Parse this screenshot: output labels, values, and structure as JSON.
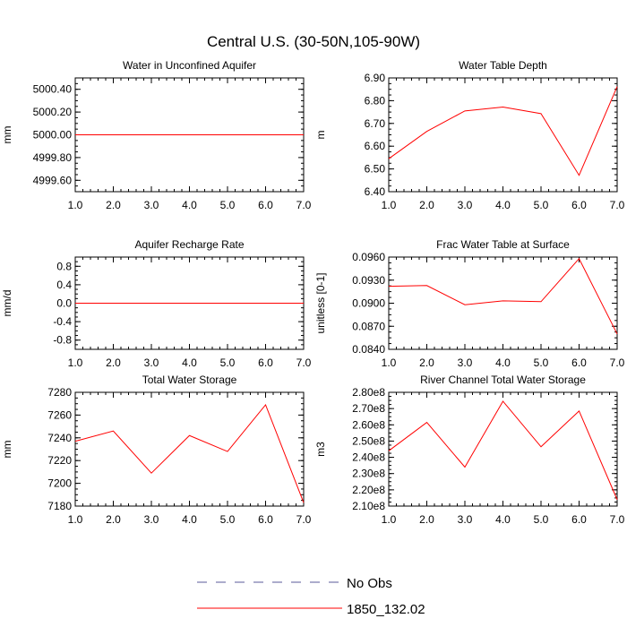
{
  "title": "Central U.S. (30-50N,105-90W)",
  "legend": {
    "placement": "bottom-center",
    "items": [
      {
        "label": "No Obs",
        "color": "#5a5a9a",
        "dash": true
      },
      {
        "label": "1850_132.02",
        "color": "#ff0000",
        "dash": false
      }
    ]
  },
  "chart_data": [
    {
      "type": "line",
      "title": "Water in Unconfined Aquifer",
      "ylabel": "mm",
      "x": [
        1,
        2,
        3,
        4,
        5,
        6,
        7
      ],
      "xlim": [
        1,
        7
      ],
      "xticks": [
        "1.0",
        "2.0",
        "3.0",
        "4.0",
        "5.0",
        "6.0",
        "7.0"
      ],
      "ylim": [
        4999.5,
        5000.5
      ],
      "yticks": [
        4999.6,
        4999.8,
        5000.0,
        5000.2,
        5000.4
      ],
      "ytick_labels": [
        "4999.60",
        "4999.80",
        "5000.00",
        "5000.20",
        "5000.40"
      ],
      "series": [
        {
          "name": "1850_132.02",
          "color": "#ff0000",
          "values": [
            5000,
            5000,
            5000,
            5000,
            5000,
            5000,
            5000
          ]
        }
      ]
    },
    {
      "type": "line",
      "title": "Water Table Depth",
      "ylabel": "m",
      "x": [
        1,
        2,
        3,
        4,
        5,
        6,
        7
      ],
      "xlim": [
        1,
        7
      ],
      "xticks": [
        "1.0",
        "2.0",
        "3.0",
        "4.0",
        "5.0",
        "6.0",
        "7.0"
      ],
      "ylim": [
        6.4,
        6.9
      ],
      "yticks": [
        6.4,
        6.5,
        6.6,
        6.7,
        6.8,
        6.9
      ],
      "ytick_labels": [
        "6.40",
        "6.50",
        "6.60",
        "6.70",
        "6.80",
        "6.90"
      ],
      "series": [
        {
          "name": "1850_132.02",
          "color": "#ff0000",
          "values": [
            6.545,
            6.665,
            6.755,
            6.772,
            6.743,
            6.472,
            6.862
          ]
        }
      ]
    },
    {
      "type": "line",
      "title": "Aquifer Recharge Rate",
      "ylabel": "mm/d",
      "x": [
        1,
        2,
        3,
        4,
        5,
        6,
        7
      ],
      "xlim": [
        1,
        7
      ],
      "xticks": [
        "1.0",
        "2.0",
        "3.0",
        "4.0",
        "5.0",
        "6.0",
        "7.0"
      ],
      "ylim": [
        -1.0,
        1.0
      ],
      "yticks": [
        -0.8,
        -0.4,
        0.0,
        0.4,
        0.8
      ],
      "ytick_labels": [
        "-0.8",
        "-0.4",
        "0.0",
        "0.4",
        "0.8"
      ],
      "series": [
        {
          "name": "1850_132.02",
          "color": "#ff0000",
          "values": [
            0,
            0,
            0,
            0,
            0,
            0,
            0
          ]
        }
      ]
    },
    {
      "type": "line",
      "title": "Frac Water Table at Surface",
      "ylabel": "unitless [0-1]",
      "x": [
        1,
        2,
        3,
        4,
        5,
        6,
        7
      ],
      "xlim": [
        1,
        7
      ],
      "xticks": [
        "1.0",
        "2.0",
        "3.0",
        "4.0",
        "5.0",
        "6.0",
        "7.0"
      ],
      "ylim": [
        0.084,
        0.096
      ],
      "yticks": [
        0.084,
        0.087,
        0.09,
        0.093,
        0.096
      ],
      "ytick_labels": [
        "0.0840",
        "0.0870",
        "0.0900",
        "0.0930",
        "0.0960"
      ],
      "series": [
        {
          "name": "1850_132.02",
          "color": "#ff0000",
          "values": [
            0.0922,
            0.0923,
            0.0898,
            0.0903,
            0.0902,
            0.0958,
            0.086
          ]
        }
      ]
    },
    {
      "type": "line",
      "title": "Total Water Storage",
      "ylabel": "mm",
      "x": [
        1,
        2,
        3,
        4,
        5,
        6,
        7
      ],
      "xlim": [
        1,
        7
      ],
      "xticks": [
        "1.0",
        "2.0",
        "3.0",
        "4.0",
        "5.0",
        "6.0",
        "7.0"
      ],
      "ylim": [
        7180,
        7280
      ],
      "yticks": [
        7180,
        7200,
        7220,
        7240,
        7260,
        7280
      ],
      "ytick_labels": [
        "7180",
        "7200",
        "7220",
        "7240",
        "7260",
        "7280"
      ],
      "series": [
        {
          "name": "1850_132.02",
          "color": "#ff0000",
          "values": [
            7237,
            7246,
            7209,
            7242,
            7228,
            7269,
            7183
          ]
        }
      ]
    },
    {
      "type": "line",
      "title": "River Channel Total Water Storage",
      "ylabel": "m3",
      "x": [
        1,
        2,
        3,
        4,
        5,
        6,
        7
      ],
      "xlim": [
        1,
        7
      ],
      "xticks": [
        "1.0",
        "2.0",
        "3.0",
        "4.0",
        "5.0",
        "6.0",
        "7.0"
      ],
      "ylim": [
        210000000,
        280000000
      ],
      "yticks": [
        210000000,
        220000000,
        230000000,
        240000000,
        250000000,
        260000000,
        270000000,
        280000000
      ],
      "ytick_labels": [
        "2.10e8",
        "2.20e8",
        "2.30e8",
        "2.40e8",
        "2.50e8",
        "2.60e8",
        "2.70e8",
        "2.80e8"
      ],
      "series": [
        {
          "name": "1850_132.02",
          "color": "#ff0000",
          "values": [
            244000000,
            261500000,
            234000000,
            274500000,
            246500000,
            268500000,
            214000000
          ]
        }
      ]
    }
  ]
}
